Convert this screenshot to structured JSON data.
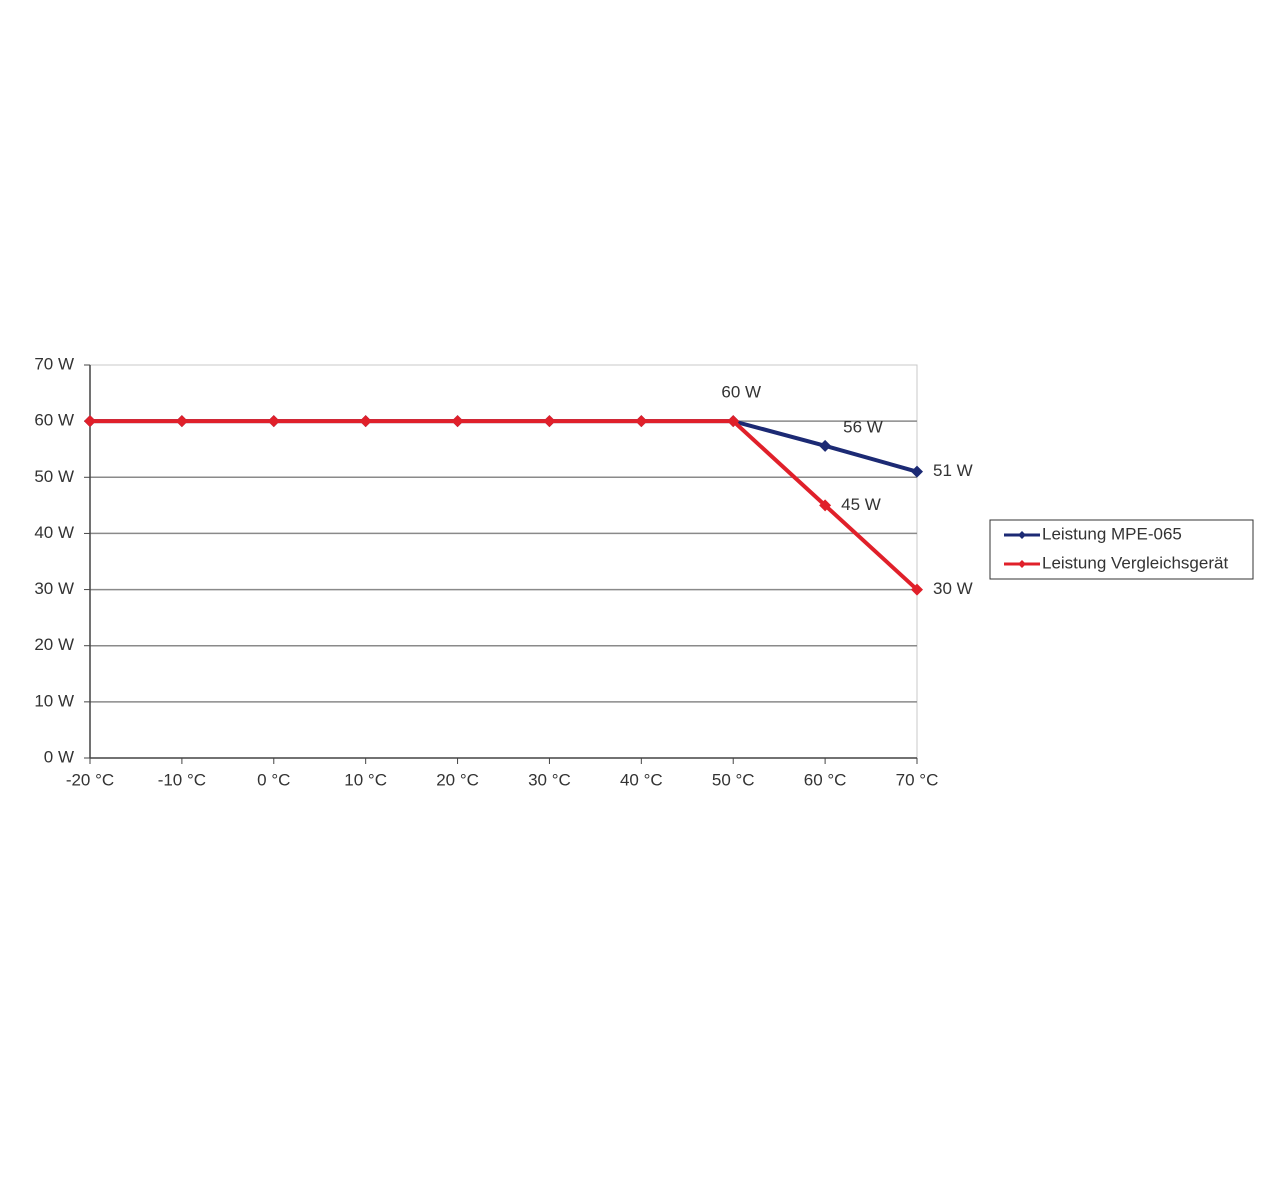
{
  "chart_data": {
    "type": "line",
    "categories": [
      "-20 °C",
      "-10 °C",
      "0 °C",
      "10 °C",
      "20 °C",
      "30 °C",
      "40 °C",
      "50 °C",
      "60 °C",
      "70 °C"
    ],
    "series": [
      {
        "name": "Leistung MPE-065",
        "color": "#1c2a74",
        "values": [
          60,
          60,
          60,
          60,
          60,
          60,
          60,
          60,
          55.6,
          51
        ],
        "value_labels": [
          null,
          null,
          null,
          null,
          null,
          null,
          null,
          "60 W",
          "56 W",
          "51 W"
        ]
      },
      {
        "name": "Leistung Vergleichsgerät",
        "color": "#e0202a",
        "values": [
          60,
          60,
          60,
          60,
          60,
          60,
          60,
          60,
          45,
          30
        ],
        "value_labels": [
          null,
          null,
          null,
          null,
          null,
          null,
          null,
          null,
          "45 W",
          "30 W"
        ]
      }
    ],
    "ylim": [
      0,
      70
    ],
    "yticks": [
      {
        "value": 0,
        "label": "0 W"
      },
      {
        "value": 10,
        "label": "10 W"
      },
      {
        "value": 20,
        "label": "20 W"
      },
      {
        "value": 30,
        "label": "30 W"
      },
      {
        "value": 40,
        "label": "40 W"
      },
      {
        "value": 50,
        "label": "50 W"
      },
      {
        "value": 60,
        "label": "60 W"
      },
      {
        "value": 70,
        "label": "70 W"
      }
    ],
    "grid": true,
    "legend": "right"
  }
}
